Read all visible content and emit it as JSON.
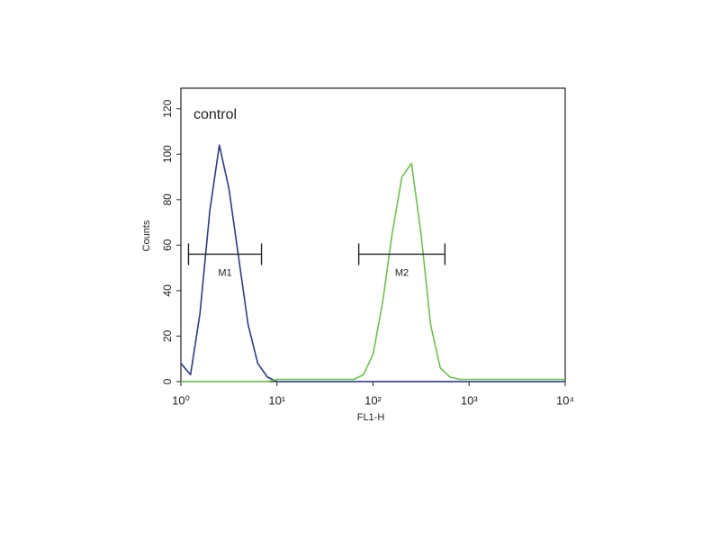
{
  "chart_data": {
    "type": "line",
    "annotation": "control",
    "x_label": "FL1-H",
    "y_label": "Counts",
    "xscale": "log",
    "x": [
      1,
      1.26,
      1.58,
      2,
      2.51,
      3.16,
      3.98,
      5.01,
      6.31,
      7.94,
      10,
      12.6,
      15.8,
      20,
      25.1,
      31.6,
      39.8,
      50.1,
      63.1,
      79.4,
      100,
      126,
      158,
      200,
      251,
      316,
      398,
      501,
      631,
      794,
      1000,
      1259,
      1585,
      1995,
      2512,
      3162,
      3981,
      5012,
      6310,
      7943,
      10000
    ],
    "series": [
      {
        "color": "#2b3b8f",
        "values": [
          8,
          3,
          30,
          75,
          104,
          85,
          55,
          25,
          8,
          2,
          0,
          0,
          0,
          0,
          0,
          0,
          0,
          0,
          0,
          0,
          0,
          0,
          0,
          0,
          0,
          0,
          0,
          0,
          0,
          0,
          0,
          0,
          0,
          0,
          0,
          0,
          0,
          0,
          0,
          0,
          0
        ]
      },
      {
        "color": "#6cc24a",
        "values": [
          0,
          0,
          0,
          0,
          0,
          0,
          0,
          0,
          0,
          0,
          1,
          1,
          1,
          1,
          1,
          1,
          1,
          1,
          1,
          3,
          12,
          35,
          65,
          90,
          96,
          65,
          25,
          6,
          2,
          1,
          1,
          1,
          1,
          1,
          1,
          1,
          1,
          1,
          1,
          1,
          1
        ]
      }
    ],
    "gates": [
      {
        "label": "M1",
        "range": [
          1.2,
          6.9
        ],
        "level": 56
      },
      {
        "label": "M2",
        "range": [
          71,
          560
        ],
        "level": 56
      }
    ],
    "xlim": [
      1,
      10000
    ],
    "xticks": [
      {
        "value": 1,
        "label": "10⁰"
      },
      {
        "value": 10,
        "label": "10¹"
      },
      {
        "value": 100,
        "label": "10²"
      },
      {
        "value": 1000,
        "label": "10³"
      },
      {
        "value": 10000,
        "label": "10⁴"
      }
    ],
    "ylim": [
      0,
      129
    ],
    "yticks": [
      0,
      20,
      40,
      60,
      80,
      100,
      120
    ]
  }
}
